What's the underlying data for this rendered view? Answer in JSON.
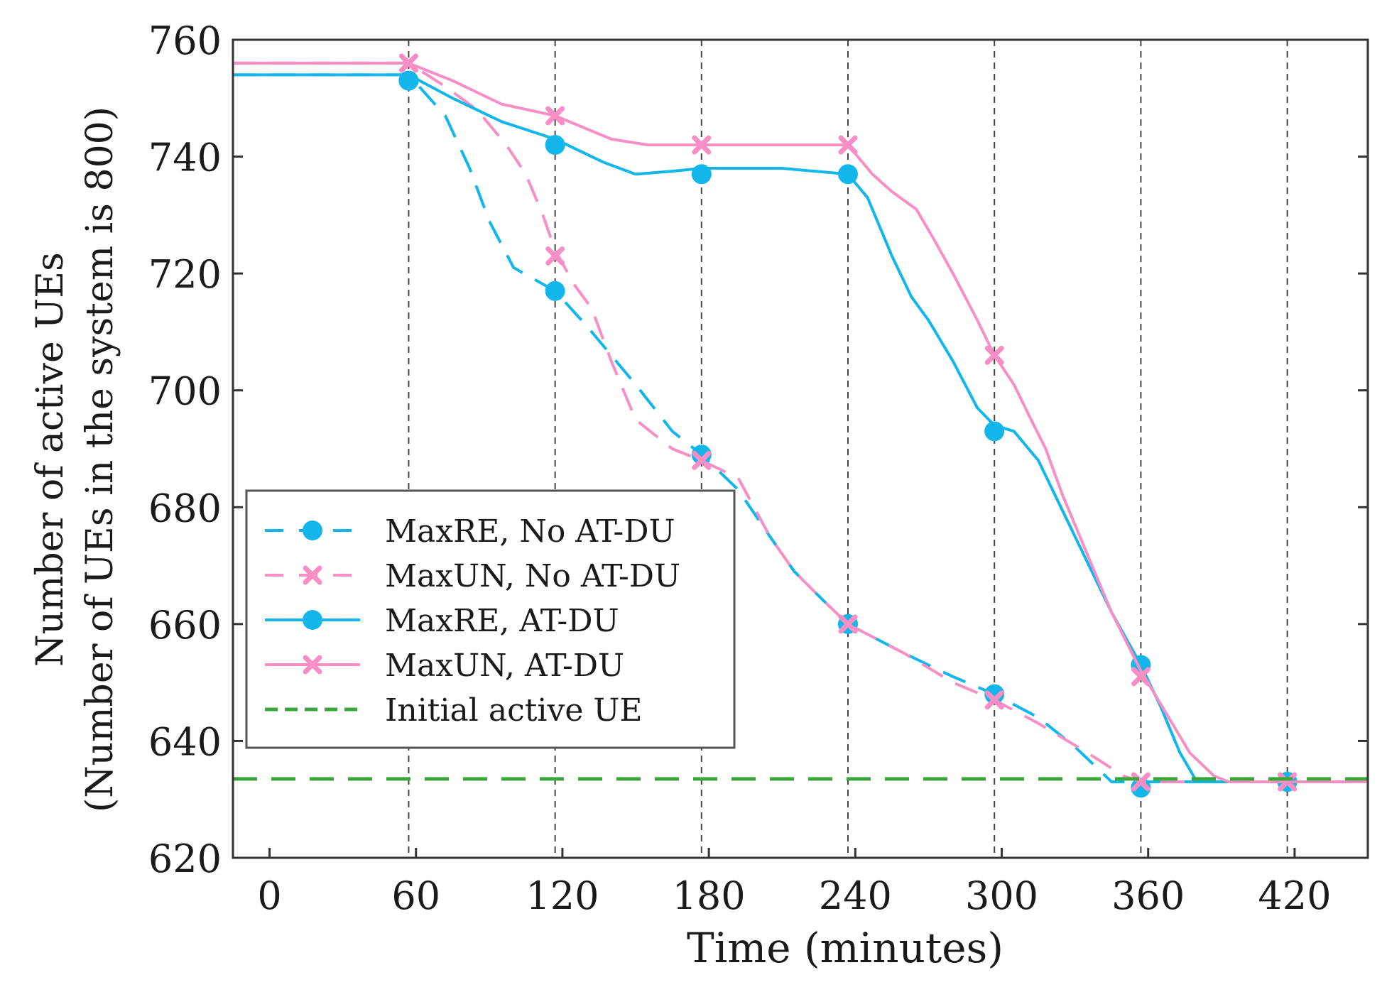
{
  "chart_data": {
    "type": "line",
    "title": "",
    "xlabel": "Time (minutes)",
    "ylabel_lines": [
      "Number of active UEs",
      "(Number of UEs in the system is 800)"
    ],
    "xlim": [
      -15,
      450
    ],
    "ylim": [
      620,
      760
    ],
    "xticks": [
      0,
      60,
      120,
      180,
      240,
      300,
      360,
      420
    ],
    "yticks": [
      620,
      640,
      660,
      680,
      700,
      720,
      740,
      760
    ],
    "vlines": [
      57,
      117,
      177,
      237,
      297,
      357,
      417
    ],
    "series": [
      {
        "name": "MaxRE, No AT-DU",
        "color": "#13b6ea",
        "dash": "dashed",
        "marker": "circle",
        "points": [
          [
            -15,
            754
          ],
          [
            57,
            754
          ],
          [
            72,
            747
          ],
          [
            82,
            738
          ],
          [
            90,
            729
          ],
          [
            100,
            721
          ],
          [
            117,
            717
          ],
          [
            130,
            711
          ],
          [
            150,
            701
          ],
          [
            165,
            693
          ],
          [
            177,
            689
          ],
          [
            192,
            683
          ],
          [
            205,
            675
          ],
          [
            215,
            669
          ],
          [
            227,
            664
          ],
          [
            237,
            660
          ],
          [
            260,
            655
          ],
          [
            280,
            651
          ],
          [
            297,
            648
          ],
          [
            315,
            644
          ],
          [
            330,
            639
          ],
          [
            340,
            635
          ],
          [
            345,
            633
          ],
          [
            450,
            633
          ]
        ],
        "markers": [
          [
            57,
            753
          ],
          [
            117,
            717
          ],
          [
            177,
            689
          ],
          [
            237,
            660
          ],
          [
            297,
            648
          ],
          [
            357,
            632
          ],
          [
            417,
            633
          ]
        ]
      },
      {
        "name": "MaxUN, No AT-DU",
        "color": "#f78fc4",
        "dash": "dashed",
        "marker": "x",
        "points": [
          [
            -15,
            756
          ],
          [
            57,
            756
          ],
          [
            72,
            752
          ],
          [
            85,
            748
          ],
          [
            97,
            742
          ],
          [
            105,
            737
          ],
          [
            112,
            730
          ],
          [
            117,
            724
          ],
          [
            125,
            718
          ],
          [
            132,
            714
          ],
          [
            140,
            705
          ],
          [
            150,
            695
          ],
          [
            165,
            690
          ],
          [
            177,
            688
          ],
          [
            192,
            685
          ],
          [
            205,
            675
          ],
          [
            215,
            669
          ],
          [
            227,
            664
          ],
          [
            237,
            660
          ],
          [
            260,
            655
          ],
          [
            280,
            650
          ],
          [
            297,
            647
          ],
          [
            315,
            643
          ],
          [
            335,
            638
          ],
          [
            350,
            634
          ],
          [
            357,
            633
          ],
          [
            450,
            633
          ]
        ],
        "markers": [
          [
            57,
            756
          ],
          [
            117,
            723
          ],
          [
            177,
            688
          ],
          [
            237,
            660
          ],
          [
            297,
            647
          ],
          [
            357,
            633
          ],
          [
            417,
            633
          ]
        ]
      },
      {
        "name": "MaxRE, AT-DU",
        "color": "#13b6ea",
        "dash": "solid",
        "marker": "circle",
        "points": [
          [
            -15,
            754
          ],
          [
            57,
            754
          ],
          [
            75,
            750
          ],
          [
            95,
            746
          ],
          [
            117,
            743
          ],
          [
            137,
            739
          ],
          [
            150,
            737
          ],
          [
            165,
            737.5
          ],
          [
            177,
            738
          ],
          [
            210,
            738
          ],
          [
            237,
            737
          ],
          [
            245,
            733
          ],
          [
            255,
            723
          ],
          [
            263,
            716
          ],
          [
            270,
            712
          ],
          [
            280,
            705
          ],
          [
            290,
            697
          ],
          [
            297,
            694
          ],
          [
            305,
            693
          ],
          [
            315,
            688
          ],
          [
            330,
            675
          ],
          [
            345,
            662
          ],
          [
            357,
            653
          ],
          [
            365,
            646
          ],
          [
            373,
            638
          ],
          [
            380,
            633
          ],
          [
            450,
            633
          ]
        ],
        "markers": [
          [
            57,
            753
          ],
          [
            117,
            742
          ],
          [
            177,
            737
          ],
          [
            237,
            737
          ],
          [
            297,
            693
          ],
          [
            357,
            653
          ],
          [
            417,
            633
          ]
        ]
      },
      {
        "name": "MaxUN, AT-DU",
        "color": "#f78fc4",
        "dash": "solid",
        "marker": "x",
        "points": [
          [
            -15,
            756
          ],
          [
            57,
            756
          ],
          [
            75,
            753
          ],
          [
            95,
            749
          ],
          [
            117,
            747
          ],
          [
            140,
            743
          ],
          [
            155,
            742
          ],
          [
            177,
            742
          ],
          [
            237,
            742
          ],
          [
            247,
            737
          ],
          [
            255,
            734
          ],
          [
            265,
            731
          ],
          [
            272,
            726
          ],
          [
            280,
            720
          ],
          [
            290,
            712
          ],
          [
            297,
            706
          ],
          [
            305,
            701
          ],
          [
            312,
            695
          ],
          [
            318,
            690
          ],
          [
            325,
            682
          ],
          [
            335,
            672
          ],
          [
            345,
            662
          ],
          [
            357,
            652
          ],
          [
            367,
            645
          ],
          [
            377,
            638
          ],
          [
            387,
            634
          ],
          [
            393,
            633
          ],
          [
            450,
            633
          ]
        ],
        "markers": [
          [
            57,
            756
          ],
          [
            117,
            747
          ],
          [
            177,
            742
          ],
          [
            237,
            742
          ],
          [
            297,
            706
          ],
          [
            357,
            651
          ],
          [
            417,
            633
          ]
        ]
      },
      {
        "name": "Initial active UE",
        "color": "#3aa63a",
        "dash": "dashed",
        "marker": "none",
        "points": [
          [
            -15,
            633.5
          ],
          [
            450,
            633.5
          ]
        ],
        "markers": []
      }
    ],
    "legend_position": "lower-left"
  }
}
